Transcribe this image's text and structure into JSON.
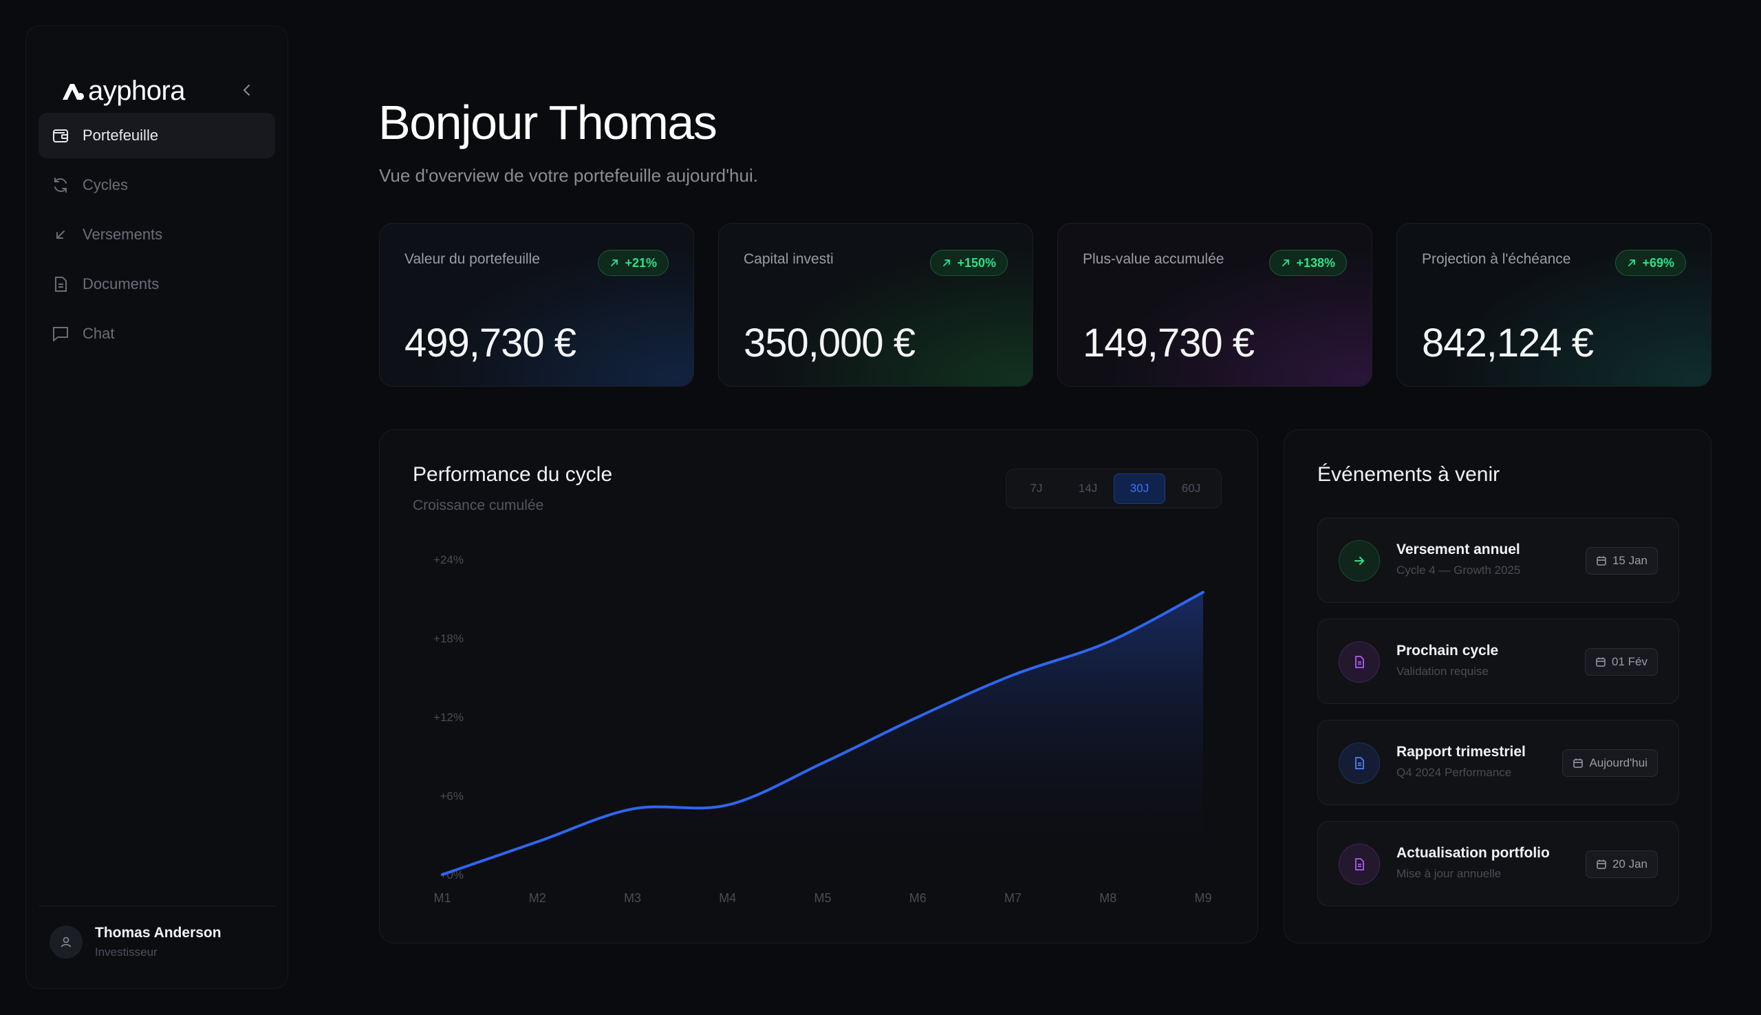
{
  "app": {
    "brand": "ayphora"
  },
  "sidebar": {
    "items": [
      {
        "label": "Portefeuille",
        "icon": "wallet-icon",
        "active": true
      },
      {
        "label": "Cycles",
        "icon": "refresh-icon",
        "active": false
      },
      {
        "label": "Versements",
        "icon": "arrow-down-left-icon",
        "active": false
      },
      {
        "label": "Documents",
        "icon": "document-icon",
        "active": false
      },
      {
        "label": "Chat",
        "icon": "chat-icon",
        "active": false
      }
    ],
    "user": {
      "name": "Thomas Anderson",
      "role": "Investisseur"
    }
  },
  "header": {
    "title": "Bonjour Thomas",
    "subtitle": "Vue d'overview de votre portefeuille aujourd'hui."
  },
  "stats": [
    {
      "label": "Valeur du portefeuille",
      "value": "499,730 €",
      "change": "+21%"
    },
    {
      "label": "Capital investi",
      "value": "350,000 €",
      "change": "+150%"
    },
    {
      "label": "Plus-value accumulée",
      "value": "149,730 €",
      "change": "+138%"
    },
    {
      "label": "Projection à l'échéance",
      "value": "842,124 €",
      "change": "+69%"
    }
  ],
  "performance": {
    "title": "Performance du cycle",
    "subtitle": "Croissance cumulée",
    "ranges": [
      "7J",
      "14J",
      "30J",
      "60J"
    ],
    "selected_range": "30J"
  },
  "chart_data": {
    "type": "area",
    "x": [
      "M1",
      "M2",
      "M3",
      "M4",
      "M5",
      "M6",
      "M7",
      "M8",
      "M9"
    ],
    "values": [
      0,
      2.5,
      5,
      5.3,
      8.5,
      12,
      15.2,
      17.7,
      21.5
    ],
    "yticks": [
      "+0%",
      "+6%",
      "+12%",
      "+18%",
      "+24%"
    ],
    "ylim": [
      0,
      24
    ],
    "color": "#2f66ee"
  },
  "events": {
    "title": "Événements à venir",
    "items": [
      {
        "title": "Versement annuel",
        "subtitle": "Cycle 4 — Growth 2025",
        "date": "15 Jan",
        "icon": "arrow-right-icon",
        "color": "#2fe08a",
        "bg": "#10261b"
      },
      {
        "title": "Prochain cycle",
        "subtitle": "Validation requise",
        "date": "01 Fév",
        "icon": "document-icon",
        "color": "#b15cf2",
        "bg": "#23182d"
      },
      {
        "title": "Rapport trimestriel",
        "subtitle": "Q4 2024 Performance",
        "date": "Aujourd'hui",
        "icon": "document-icon",
        "color": "#4d82ff",
        "bg": "#141d33"
      },
      {
        "title": "Actualisation portfolio",
        "subtitle": "Mise à jour annuelle",
        "date": "20 Jan",
        "icon": "document-icon",
        "color": "#b15cf2",
        "bg": "#23182d"
      }
    ]
  }
}
